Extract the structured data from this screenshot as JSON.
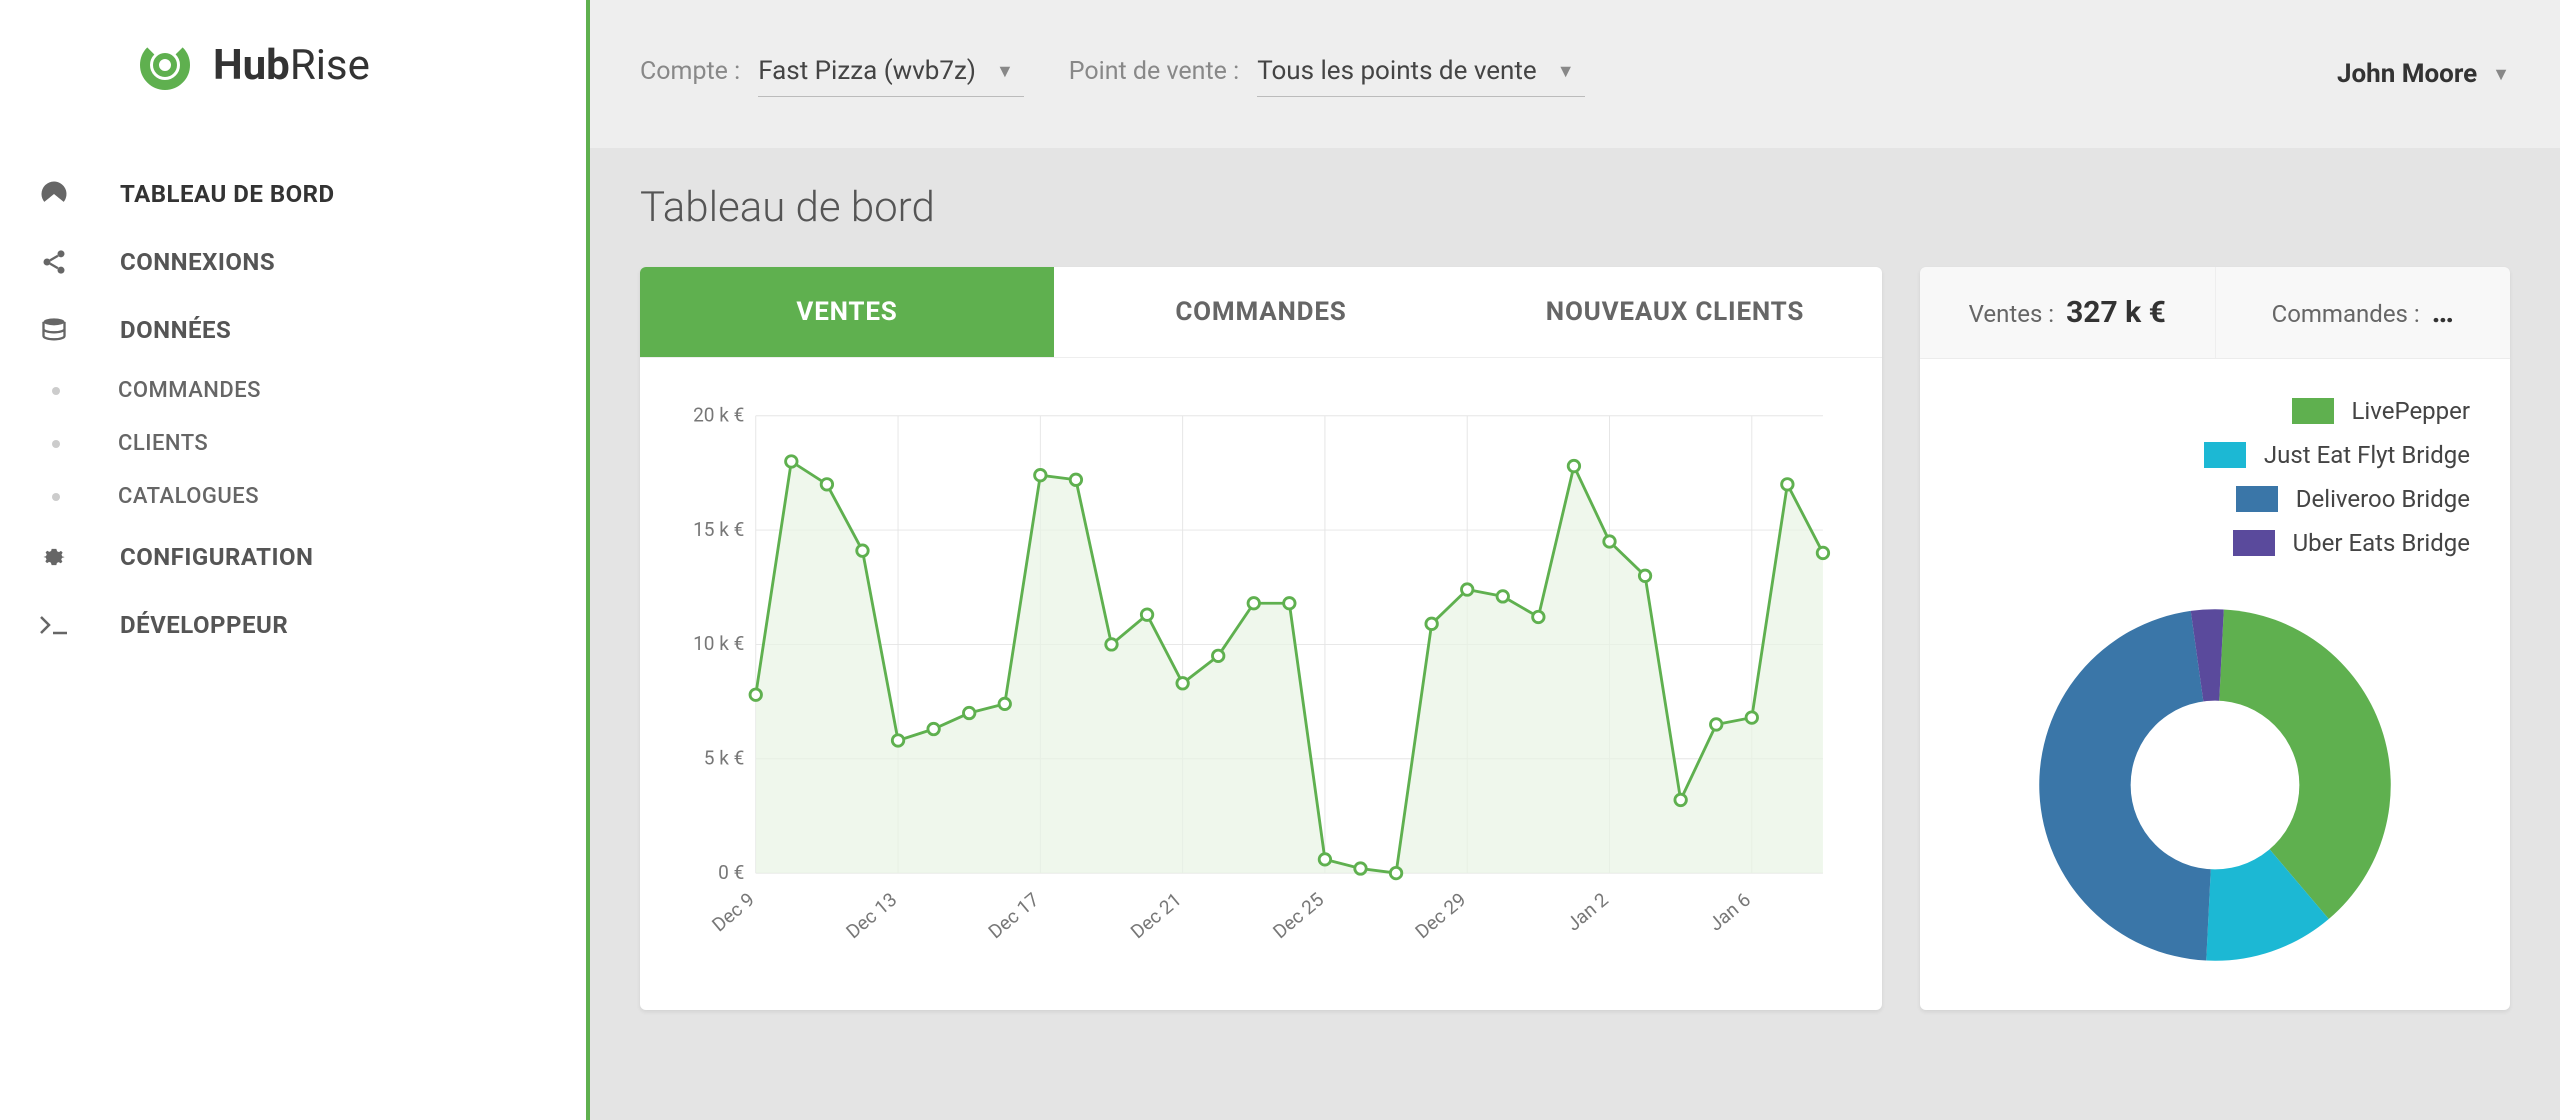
{
  "brand": {
    "name1": "Hub",
    "name2": "Rise",
    "accent": "#5fb04f"
  },
  "topbar": {
    "account_label": "Compte :",
    "account_value": "Fast Pizza (wvb7z)",
    "pos_label": "Point de vente :",
    "pos_value": "Tous les points de vente",
    "user": "John Moore"
  },
  "nav": {
    "items": [
      {
        "label": "TABLEAU DE BORD",
        "icon": "dashboard",
        "active": true
      },
      {
        "label": "CONNEXIONS",
        "icon": "share"
      },
      {
        "label": "DONNÉES",
        "icon": "database"
      }
    ],
    "sub_items": [
      {
        "label": "COMMANDES"
      },
      {
        "label": "CLIENTS"
      },
      {
        "label": "CATALOGUES"
      }
    ],
    "items2": [
      {
        "label": "CONFIGURATION",
        "icon": "gear"
      },
      {
        "label": "DÉVELOPPEUR",
        "icon": "terminal"
      }
    ]
  },
  "page": {
    "title": "Tableau de bord"
  },
  "chart": {
    "tabs": [
      {
        "label": "VENTES",
        "active": true
      },
      {
        "label": "COMMANDES"
      },
      {
        "label": "NOUVEAUX CLIENTS"
      }
    ],
    "type": "line",
    "y_axis": {
      "ticks": [
        "0 €",
        "5 k €",
        "10 k €",
        "15 k €",
        "20 k €"
      ],
      "values": [
        0,
        5,
        10,
        15,
        20
      ],
      "ylim": [
        0,
        20
      ]
    },
    "x_axis": {
      "ticks": [
        "Dec 9",
        "Dec 13",
        "Dec 17",
        "Dec 21",
        "Dec 25",
        "Dec 29",
        "Jan 2",
        "Jan 6"
      ]
    },
    "series": {
      "color": "#5fb04f",
      "fill": "#e8f3e4",
      "values": [
        7.8,
        18.0,
        17.0,
        14.1,
        5.8,
        6.3,
        7.0,
        7.4,
        17.4,
        17.2,
        10.0,
        11.3,
        8.3,
        9.5,
        11.8,
        11.8,
        0.6,
        0.2,
        0.0,
        10.9,
        12.4,
        12.1,
        11.2,
        17.8,
        14.5,
        13.0,
        3.2,
        6.5,
        6.8,
        17.0,
        14.0
      ]
    },
    "grid_color": "#e5e5e5",
    "background": "#ffffff"
  },
  "stats": {
    "boxes": [
      {
        "label": "Ventes :",
        "value": "327 k €"
      },
      {
        "label": "Commandes :",
        "value": "…"
      }
    ],
    "legend": [
      {
        "label": "LivePepper",
        "color": "#5fb04f"
      },
      {
        "label": "Just Eat Flyt Bridge",
        "color": "#1cb8d4"
      },
      {
        "label": "Deliveroo Bridge",
        "color": "#3a76a8"
      },
      {
        "label": "Uber Eats Bridge",
        "color": "#5a4a9c"
      }
    ],
    "donut": {
      "type": "pie",
      "slices": [
        {
          "color": "#5fb04f",
          "value": 38
        },
        {
          "color": "#1cb8d4",
          "value": 12
        },
        {
          "color": "#3a76a8",
          "value": 47
        },
        {
          "color": "#5a4a9c",
          "value": 3
        }
      ],
      "inner_radius_pct": 48
    }
  }
}
